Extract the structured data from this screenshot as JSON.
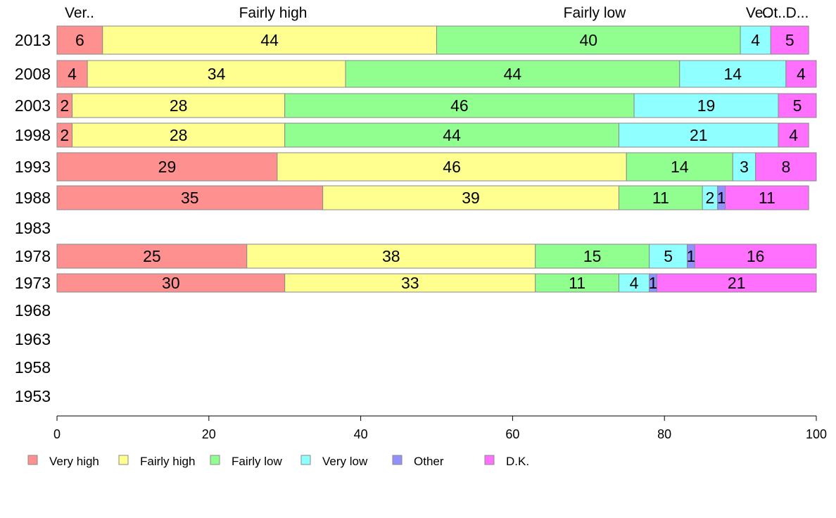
{
  "chart_data": {
    "type": "bar",
    "orientation": "horizontal",
    "stacked": true,
    "categories": [
      "2013",
      "2008",
      "2003",
      "1998",
      "1993",
      "1988",
      "1983",
      "1978",
      "1973",
      "1968",
      "1963",
      "1958",
      "1953"
    ],
    "xlim": [
      0,
      100
    ],
    "xticks": [
      "0",
      "20",
      "40",
      "60",
      "80",
      "100"
    ],
    "grid": false,
    "legend_position": "bottom",
    "top_labels": [
      "Ver..",
      "Fairly high",
      "Fairly low",
      "Ve..",
      "Ot..",
      "D..."
    ],
    "series": [
      {
        "name": "Very high",
        "color": "#ff9090",
        "values": [
          6,
          4,
          2,
          2,
          29,
          35,
          null,
          25,
          30,
          null,
          null,
          null,
          null
        ],
        "labels": [
          "6",
          "4",
          "2",
          "2",
          "29",
          "35",
          "",
          "25",
          "30",
          "",
          "",
          "",
          ""
        ]
      },
      {
        "name": "Fairly high",
        "color": "#ffff90",
        "values": [
          44,
          34,
          28,
          28,
          46,
          39,
          null,
          38,
          33,
          null,
          null,
          null,
          null
        ],
        "labels": [
          "44",
          "34",
          "28",
          "28",
          "46",
          "39",
          "",
          "38",
          "33",
          "",
          "",
          "",
          ""
        ]
      },
      {
        "name": "Fairly low",
        "color": "#90ff90",
        "values": [
          40,
          44,
          46,
          44,
          14,
          11,
          null,
          15,
          11,
          null,
          null,
          null,
          null
        ],
        "labels": [
          "40",
          "44",
          "46",
          "44",
          "14",
          "11",
          "",
          "15",
          "11",
          "",
          "",
          "",
          ""
        ]
      },
      {
        "name": "Very low",
        "color": "#90ffff",
        "values": [
          4,
          14,
          19,
          21,
          3,
          2,
          null,
          5,
          4,
          null,
          null,
          null,
          null
        ],
        "labels": [
          "4",
          "14",
          "19",
          "21",
          "3",
          "2",
          "",
          "5",
          "4",
          "",
          "",
          "",
          ""
        ]
      },
      {
        "name": "Other",
        "color": "#9090ff",
        "values": [
          0,
          0,
          0,
          0,
          0,
          1,
          null,
          1,
          1,
          null,
          null,
          null,
          null
        ],
        "labels": [
          "",
          "",
          "",
          "",
          "",
          "1",
          "",
          "1",
          "1",
          "",
          "",
          "",
          ""
        ]
      },
      {
        "name": "D.K.",
        "color": "#ff70ff",
        "values": [
          5,
          4,
          5,
          4,
          8,
          11,
          null,
          16,
          21,
          null,
          null,
          null,
          null
        ],
        "labels": [
          "5",
          "4",
          "5",
          "4",
          "8",
          "11",
          "",
          "16",
          "21",
          "",
          "",
          "",
          ""
        ]
      }
    ]
  }
}
